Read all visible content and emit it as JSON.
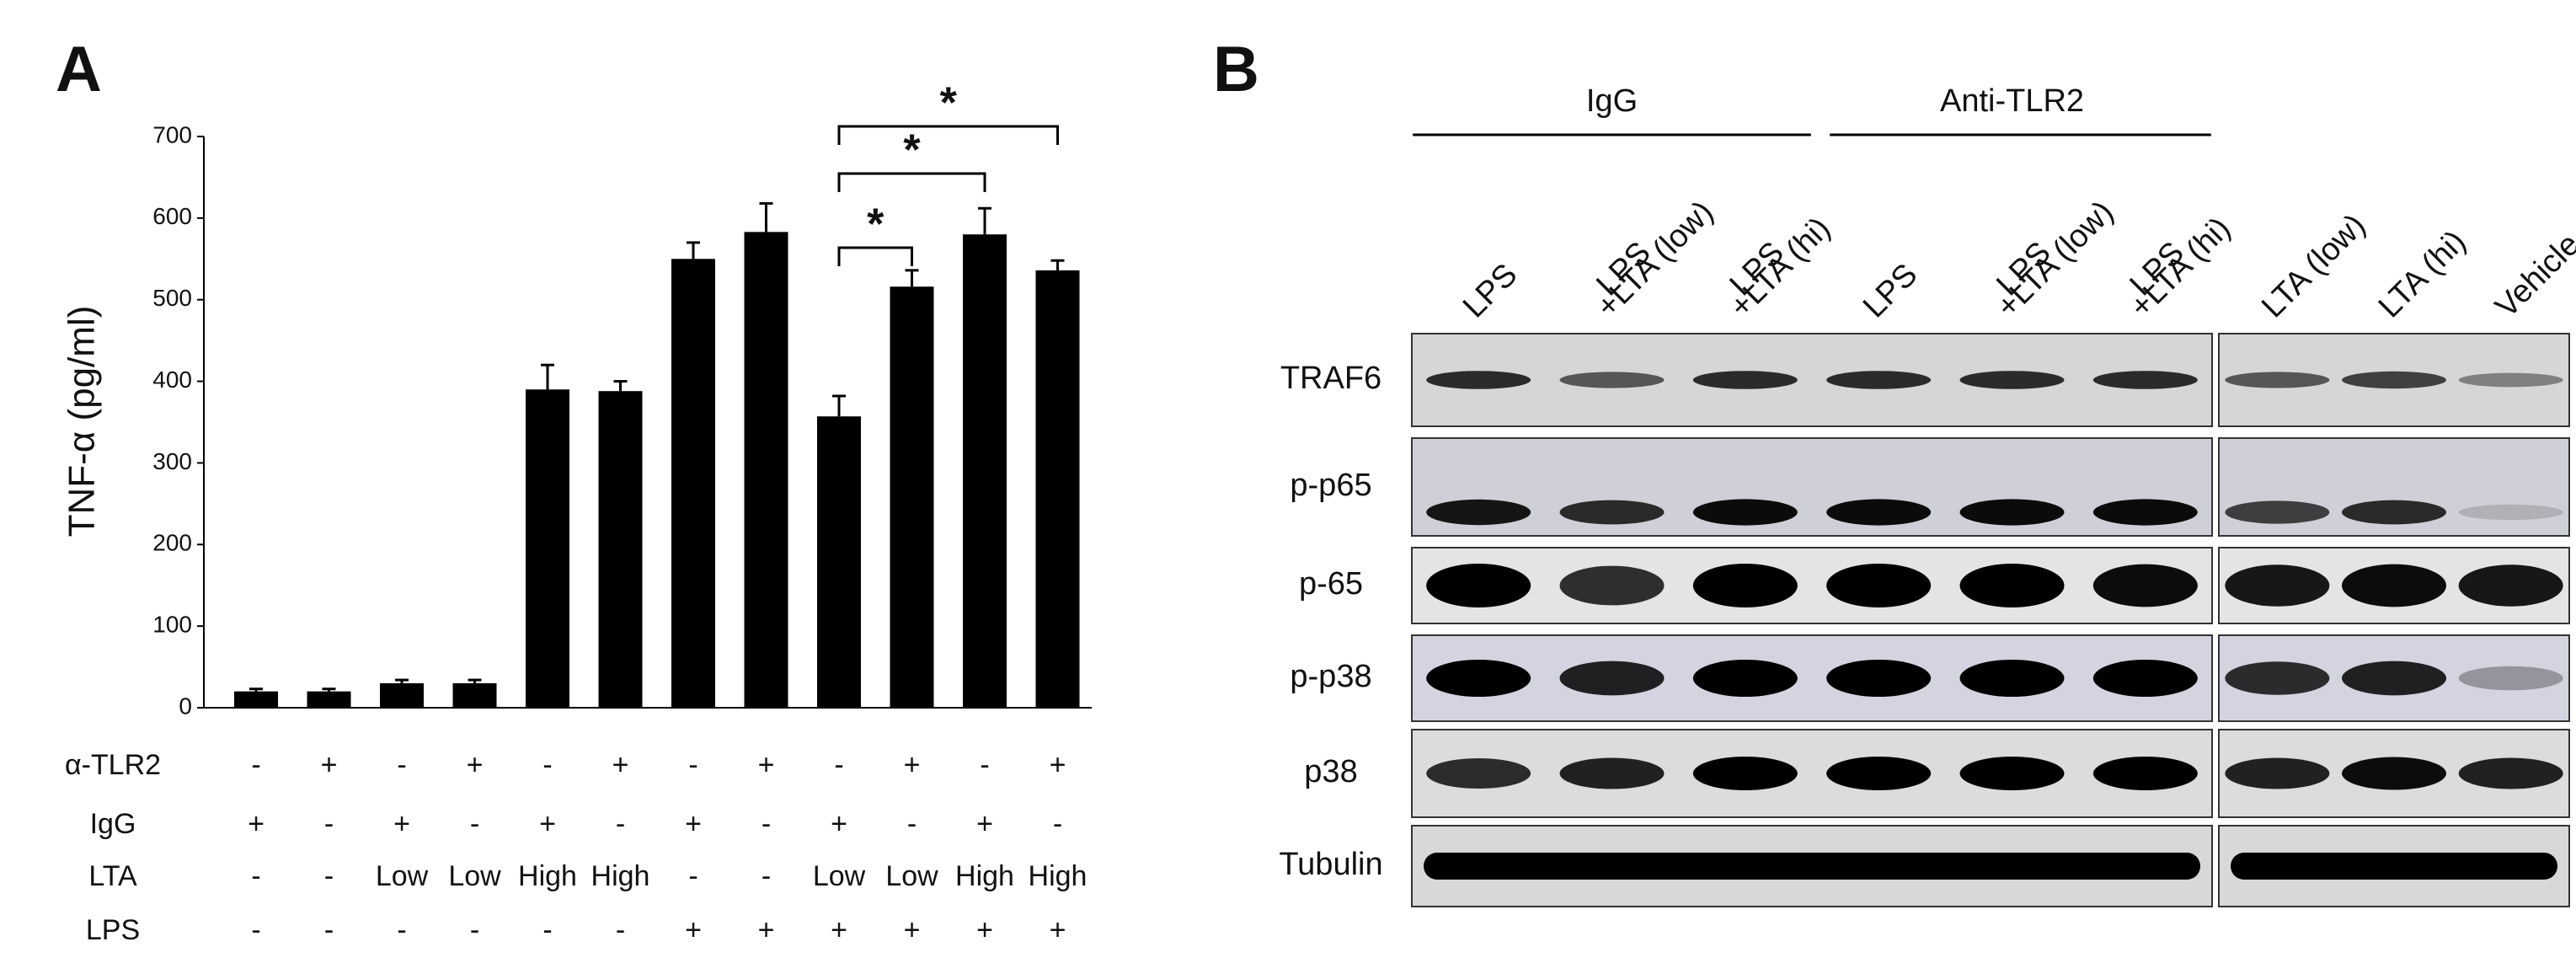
{
  "panel_a_label": "A",
  "chart_data": {
    "type": "bar",
    "ylabel": "TNF-α (pg/ml)",
    "values": [
      20,
      20,
      30,
      30,
      390,
      388,
      550,
      583,
      357,
      516,
      580,
      536
    ],
    "errors": [
      3,
      3,
      4,
      4,
      30,
      12,
      20,
      35,
      25,
      20,
      32,
      12
    ],
    "color": "#000000",
    "ylim": [
      0,
      700
    ],
    "yticks": [
      0,
      100,
      200,
      300,
      400,
      500,
      600,
      700
    ],
    "conditions": [
      {
        "name": "α-TLR2",
        "values": [
          "-",
          "+",
          "-",
          "+",
          "-",
          "+",
          "-",
          "+",
          "-",
          "+",
          "-",
          "+"
        ]
      },
      {
        "name": "IgG",
        "values": [
          "+",
          "-",
          "+",
          "-",
          "+",
          "-",
          "+",
          "-",
          "+",
          "-",
          "+",
          "-"
        ]
      },
      {
        "name": "LTA",
        "values": [
          "-",
          "-",
          "Low",
          "Low",
          "High",
          "High",
          "-",
          "-",
          "Low",
          "Low",
          "High",
          "High"
        ]
      },
      {
        "name": "LPS",
        "values": [
          "-",
          "-",
          "-",
          "-",
          "-",
          "-",
          "+",
          "+",
          "+",
          "+",
          "+",
          "+"
        ]
      }
    ],
    "significance": [
      {
        "bars": [
          8,
          9
        ],
        "label": "*"
      },
      {
        "bars": [
          8,
          10
        ],
        "label": "*"
      },
      {
        "bars": [
          8,
          11
        ],
        "label": "*"
      }
    ]
  },
  "panel_b": {
    "label": "B",
    "groups": [
      {
        "label": "IgG",
        "lanes": [
          0,
          2
        ]
      },
      {
        "label": "Anti-TLR2",
        "lanes": [
          3,
          5
        ]
      }
    ],
    "lanes": [
      [
        "LPS"
      ],
      [
        "LPS",
        "+LTA (low)"
      ],
      [
        "LPS",
        "+LTA (hi)"
      ],
      [
        "LPS"
      ],
      [
        "LPS",
        "+LTA (low)"
      ],
      [
        "LPS",
        "+LTA (hi)"
      ],
      [
        "LTA (low)"
      ],
      [
        "LTA (hi)"
      ],
      [
        "Vehicle"
      ]
    ],
    "rows": [
      "TRAF6",
      "p-p65",
      "p-65",
      "p-p38",
      "p38",
      "Tubulin"
    ]
  }
}
